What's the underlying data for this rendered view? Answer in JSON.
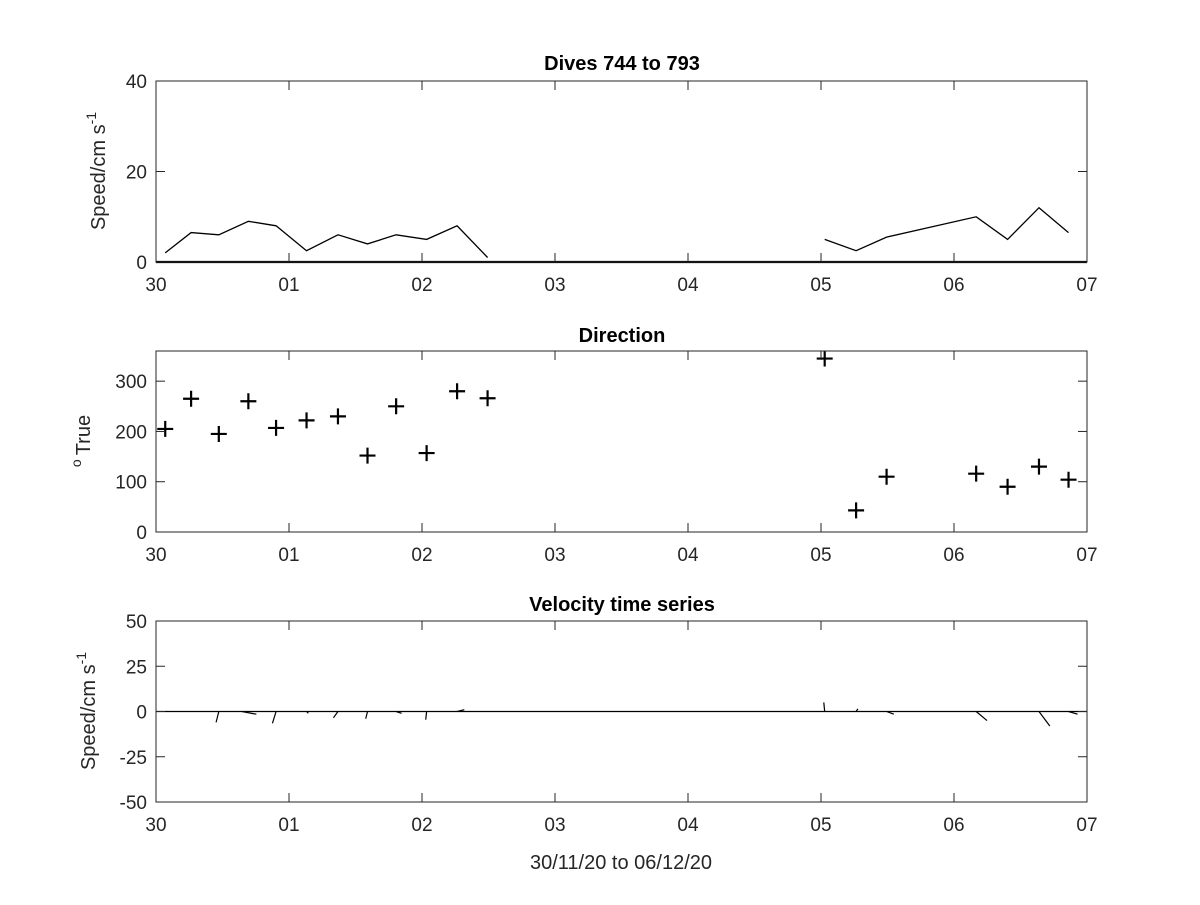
{
  "figure": {
    "xlabel": "30/11/20 to 06/12/20",
    "x_tick_labels": [
      "30",
      "01",
      "02",
      "03",
      "04",
      "05",
      "06",
      "07"
    ],
    "x_domain": [
      "2020-11-30",
      "2020-12-07"
    ]
  },
  "chart_data": [
    {
      "type": "line",
      "title": "Dives 744 to 793",
      "ylabel": "Speed/cm s",
      "ylabel_superscript": "-1",
      "ylim": [
        0,
        40
      ],
      "y_ticks": [
        0,
        20,
        40
      ],
      "x_unit": "date",
      "x": [
        "2020-11-30T01:40",
        "2020-11-30T06:20",
        "2020-11-30T11:20",
        "2020-11-30T16:40",
        "2020-11-30T21:40",
        "2020-12-01T03:10",
        "2020-12-01T08:50",
        "2020-12-01T14:10",
        "2020-12-01T19:20",
        "2020-12-02T00:50",
        "2020-12-02T06:20",
        "2020-12-02T11:50",
        "2020-12-05T00:40",
        "2020-12-05T06:20",
        "2020-12-05T11:50",
        "2020-12-06T04:00",
        "2020-12-06T09:40",
        "2020-12-06T15:20",
        "2020-12-06T20:40"
      ],
      "y": [
        2,
        6.5,
        6,
        9,
        8,
        2.5,
        6,
        4,
        6,
        5,
        8,
        1,
        5,
        2.5,
        5.5,
        10,
        5,
        12,
        6.5
      ],
      "segments_gap_after_index": 11,
      "baseline": 0
    },
    {
      "type": "scatter",
      "title": "Direction",
      "ylabel": "True",
      "ylabel_superscript": "o",
      "ylim": [
        0,
        360
      ],
      "y_ticks": [
        0,
        100,
        200,
        300
      ],
      "x_unit": "date",
      "marker": "+",
      "x": [
        "2020-11-30T01:40",
        "2020-11-30T06:20",
        "2020-11-30T11:20",
        "2020-11-30T16:40",
        "2020-11-30T21:40",
        "2020-12-01T03:10",
        "2020-12-01T08:50",
        "2020-12-01T14:10",
        "2020-12-01T19:20",
        "2020-12-02T00:50",
        "2020-12-02T06:20",
        "2020-12-02T11:50",
        "2020-12-05T00:40",
        "2020-12-05T06:20",
        "2020-12-05T11:50",
        "2020-12-06T04:00",
        "2020-12-06T09:40",
        "2020-12-06T15:20",
        "2020-12-06T20:40"
      ],
      "y": [
        205,
        265,
        195,
        260,
        207,
        222,
        230,
        152,
        250,
        157,
        280,
        266,
        345,
        43,
        110,
        116,
        90,
        130,
        104
      ]
    },
    {
      "type": "line",
      "subtype": "stick-plot",
      "title": "Velocity time series",
      "ylabel": "Speed/cm s",
      "ylabel_superscript": "-1",
      "ylim": [
        -50,
        50
      ],
      "y_ticks": [
        -50,
        -25,
        0,
        25,
        50
      ],
      "x_unit": "date",
      "x": [
        "2020-11-30T11:20",
        "2020-11-30T15:30",
        "2020-11-30T21:40",
        "2020-12-01T03:10",
        "2020-12-01T08:50",
        "2020-12-01T14:10",
        "2020-12-01T19:20",
        "2020-12-02T00:50",
        "2020-12-02T06:20",
        "2020-12-05T00:40",
        "2020-12-05T06:20",
        "2020-12-05T11:50",
        "2020-12-06T04:00",
        "2020-12-06T15:20",
        "2020-12-06T20:40"
      ],
      "u": [
        -1.5,
        8,
        -2,
        1,
        -2.5,
        -1,
        3,
        -0.5,
        4,
        -0.5,
        1,
        4,
        6,
        6,
        5
      ],
      "v": [
        -6,
        -1.5,
        -6.5,
        -1,
        -3.5,
        -4,
        -1,
        -4.5,
        1,
        5,
        1.5,
        -1.5,
        -5,
        -8,
        -1.5
      ],
      "zero_line": true
    }
  ]
}
